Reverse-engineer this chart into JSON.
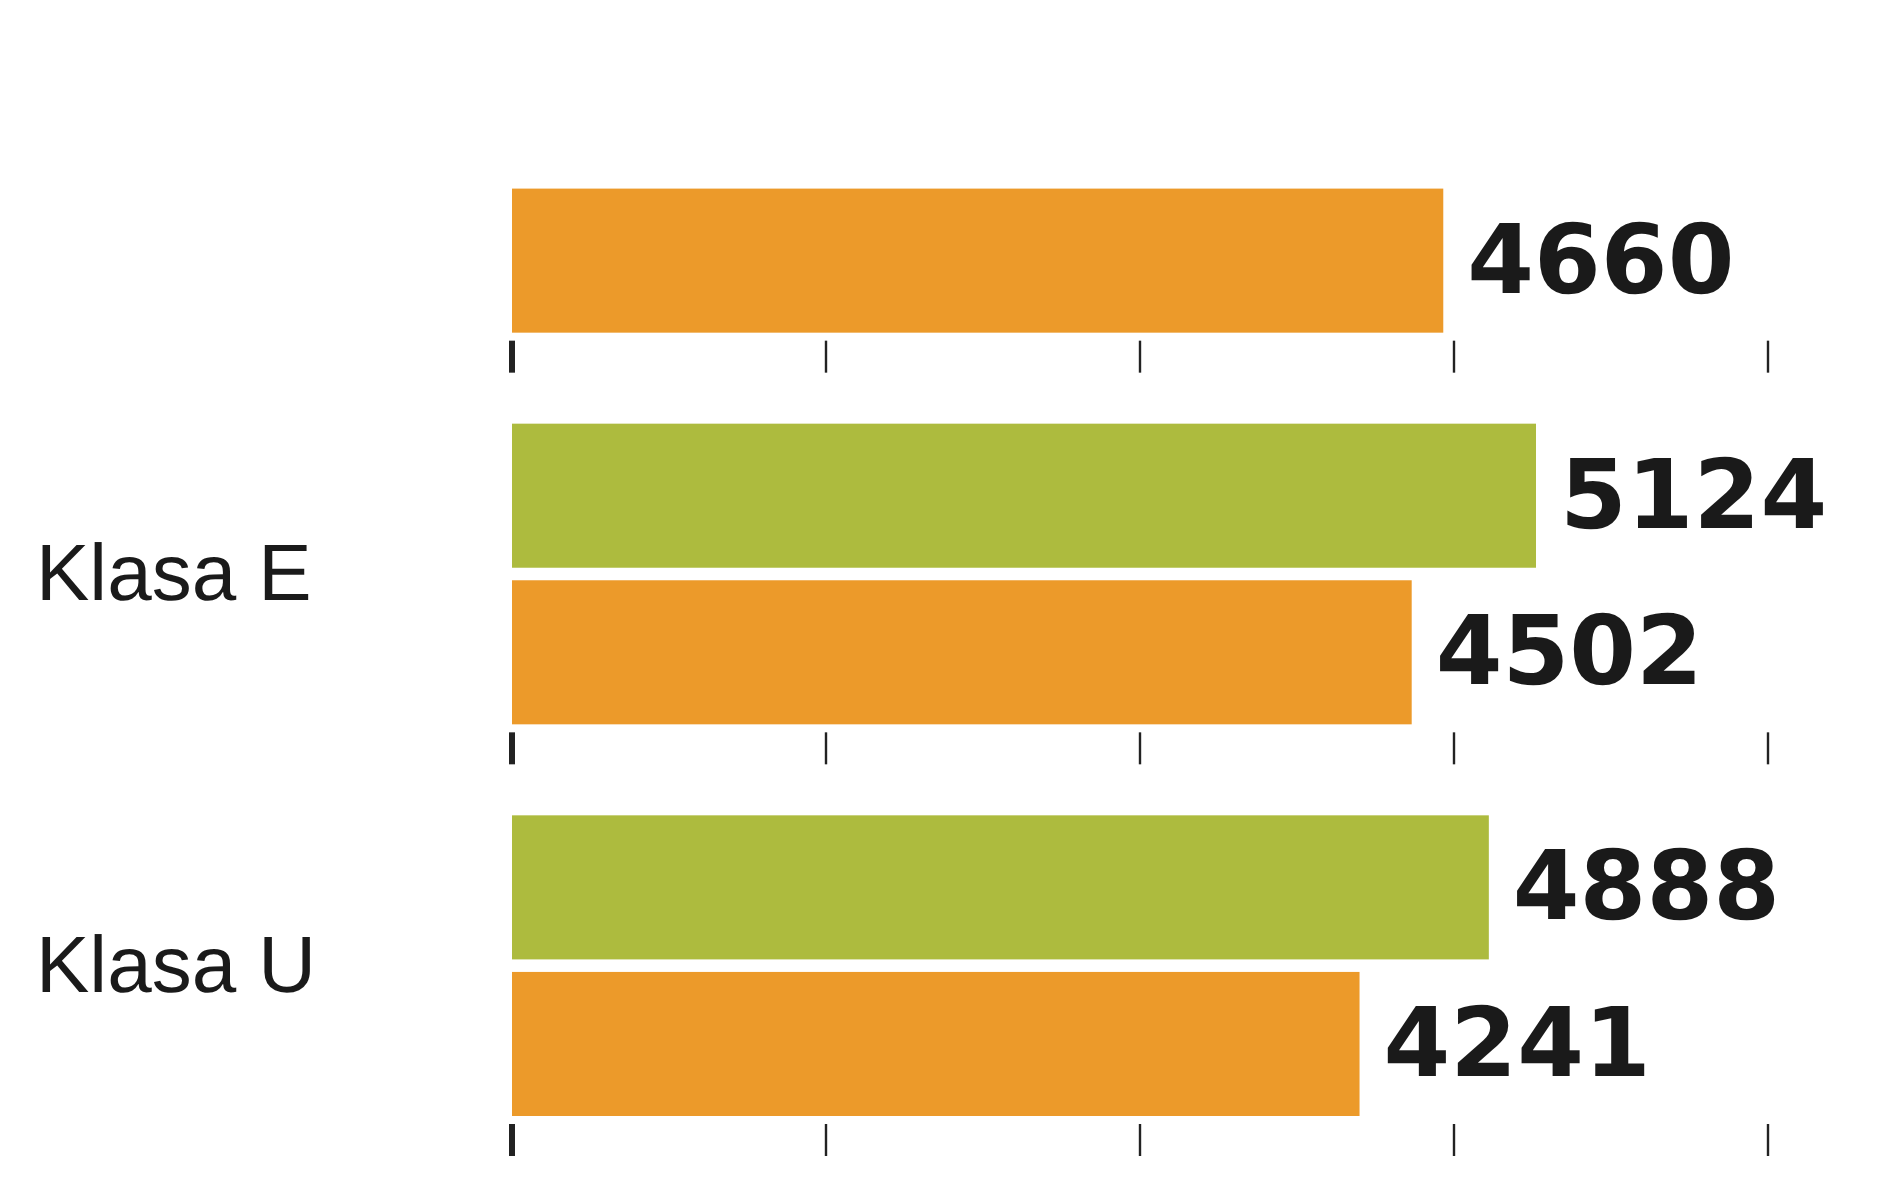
{
  "chart_data": {
    "type": "bar",
    "orientation": "horizontal",
    "categories": [
      null,
      "Klasa E",
      "Klasa U"
    ],
    "series": [
      {
        "color": "#adbb3e",
        "values": [
          null,
          5124,
          4888
        ]
      },
      {
        "color": "#ec9a2a",
        "values": [
          4660,
          4502,
          4241
        ]
      }
    ],
    "data_labels": true
  }
}
